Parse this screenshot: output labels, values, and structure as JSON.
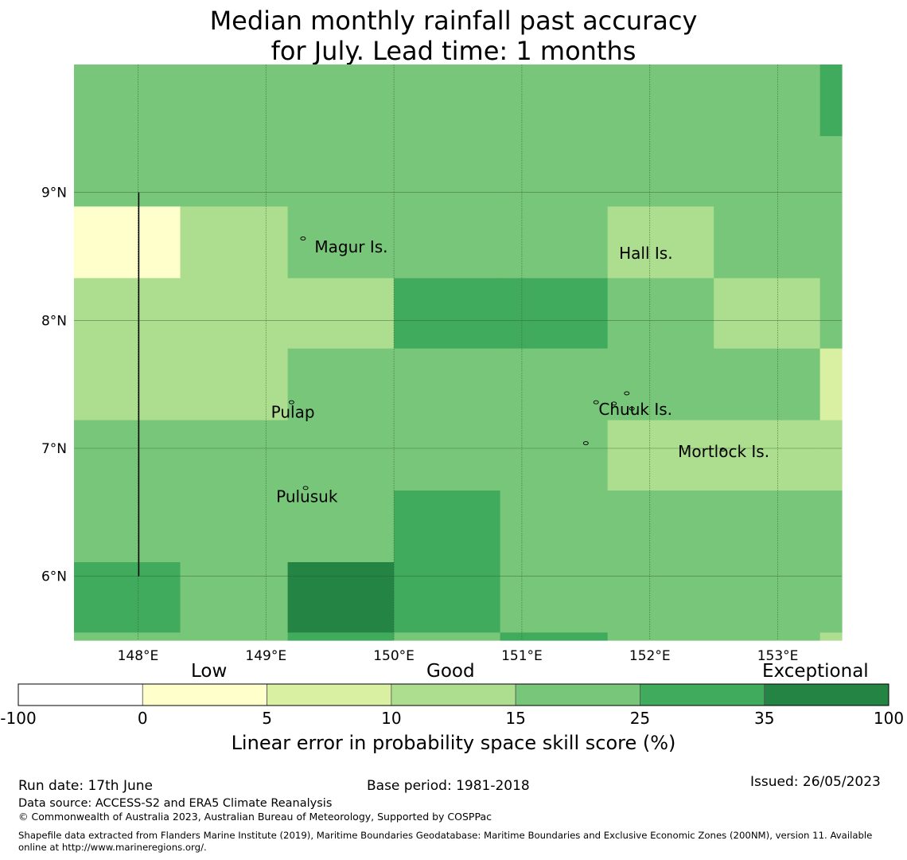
{
  "title_line1": "Median monthly rainfall past accuracy",
  "title_line2": "for July. Lead time: 1 months",
  "map": {
    "lon_range": [
      147.5,
      153.5
    ],
    "lat_range": [
      5.5,
      10.0
    ],
    "lon_ticks": [
      {
        "value": 148,
        "label": "148°E"
      },
      {
        "value": 149,
        "label": "149°E"
      },
      {
        "value": 150,
        "label": "150°E"
      },
      {
        "value": 151,
        "label": "151°E"
      },
      {
        "value": 152,
        "label": "152°E"
      },
      {
        "value": 153,
        "label": "153°E"
      }
    ],
    "lat_ticks": [
      {
        "value": 9,
        "label": "9°N"
      },
      {
        "value": 8,
        "label": "8°N"
      },
      {
        "value": 7,
        "label": "7°N"
      },
      {
        "value": 6,
        "label": "6°N"
      }
    ],
    "cell_lon_edges": [
      147.5,
      148.33,
      149.17,
      150.0,
      150.83,
      151.67,
      152.5,
      153.33,
      153.5
    ],
    "cell_lat_edges": [
      10.0,
      9.44,
      8.89,
      8.33,
      7.78,
      7.22,
      6.67,
      6.11,
      5.56,
      5.5
    ],
    "cell_levels": [
      [
        4,
        4,
        4,
        4,
        4,
        4,
        4,
        5
      ],
      [
        4,
        4,
        4,
        4,
        4,
        4,
        4,
        4
      ],
      [
        1,
        3,
        4,
        4,
        4,
        3,
        4,
        4
      ],
      [
        3,
        3,
        3,
        5,
        5,
        4,
        3,
        4
      ],
      [
        3,
        3,
        4,
        4,
        4,
        4,
        4,
        2
      ],
      [
        4,
        4,
        4,
        4,
        4,
        3,
        3,
        3
      ],
      [
        4,
        4,
        4,
        5,
        4,
        4,
        4,
        4
      ],
      [
        5,
        4,
        6,
        5,
        4,
        4,
        4,
        4
      ],
      [
        4,
        4,
        5,
        4,
        5,
        4,
        4,
        3
      ]
    ],
    "island_labels": [
      {
        "name": "Magur Is.",
        "lon": 149.38,
        "lat": 8.53
      },
      {
        "name": "Hall Is.",
        "lon": 151.76,
        "lat": 8.48
      },
      {
        "name": "Pulap",
        "lon": 149.04,
        "lat": 7.24
      },
      {
        "name": "Chuuk Is.",
        "lon": 151.6,
        "lat": 7.26
      },
      {
        "name": "Mortlock Is.",
        "lon": 152.22,
        "lat": 6.93
      },
      {
        "name": "Pulusuk",
        "lon": 149.08,
        "lat": 6.58
      }
    ],
    "islands": [
      {
        "lon": 149.29,
        "lat": 8.64
      },
      {
        "lon": 149.2,
        "lat": 7.36
      },
      {
        "lon": 149.31,
        "lat": 6.69
      },
      {
        "lon": 151.58,
        "lat": 7.36
      },
      {
        "lon": 151.82,
        "lat": 7.43
      },
      {
        "lon": 151.72,
        "lat": 7.35
      },
      {
        "lon": 151.86,
        "lat": 7.31
      },
      {
        "lon": 152.57,
        "lat": 6.99
      },
      {
        "lon": 151.5,
        "lat": 7.04
      }
    ],
    "boundary_line": {
      "lon": 148.0,
      "lat_from": 9.0,
      "lat_to": 6.0
    }
  },
  "colorbar": {
    "bounds": [
      "-100",
      "0",
      "5",
      "10",
      "15",
      "25",
      "35",
      "100"
    ],
    "colors": [
      "#ffffff",
      "#ffffcc",
      "#d9f0a3",
      "#addd8e",
      "#78c679",
      "#41ab5d",
      "#238443"
    ],
    "categories": [
      "Low",
      "Good",
      "Exceptional"
    ],
    "label": "Linear error in probability space skill score (%)"
  },
  "footer": {
    "run_date": "Run date: 17th June",
    "base_period": "Base period: 1981-2018",
    "issued": "Issued: 26/05/2023",
    "data_source": "Data source: ACCESS-S2 and ERA5 Climate Reanalysis",
    "copyright": "© Commonwealth of Australia 2023, Australian Bureau of Meteorology, Supported by COSPPac",
    "shapefile_line1": "Shapefile data extracted from Flanders Marine Institute (2019), Maritime Boundaries Geodatabase: Maritime Boundaries and Exclusive Economic Zones (200NM), version 11. Available",
    "shapefile_line2": "online at http://www.marineregions.org/."
  }
}
